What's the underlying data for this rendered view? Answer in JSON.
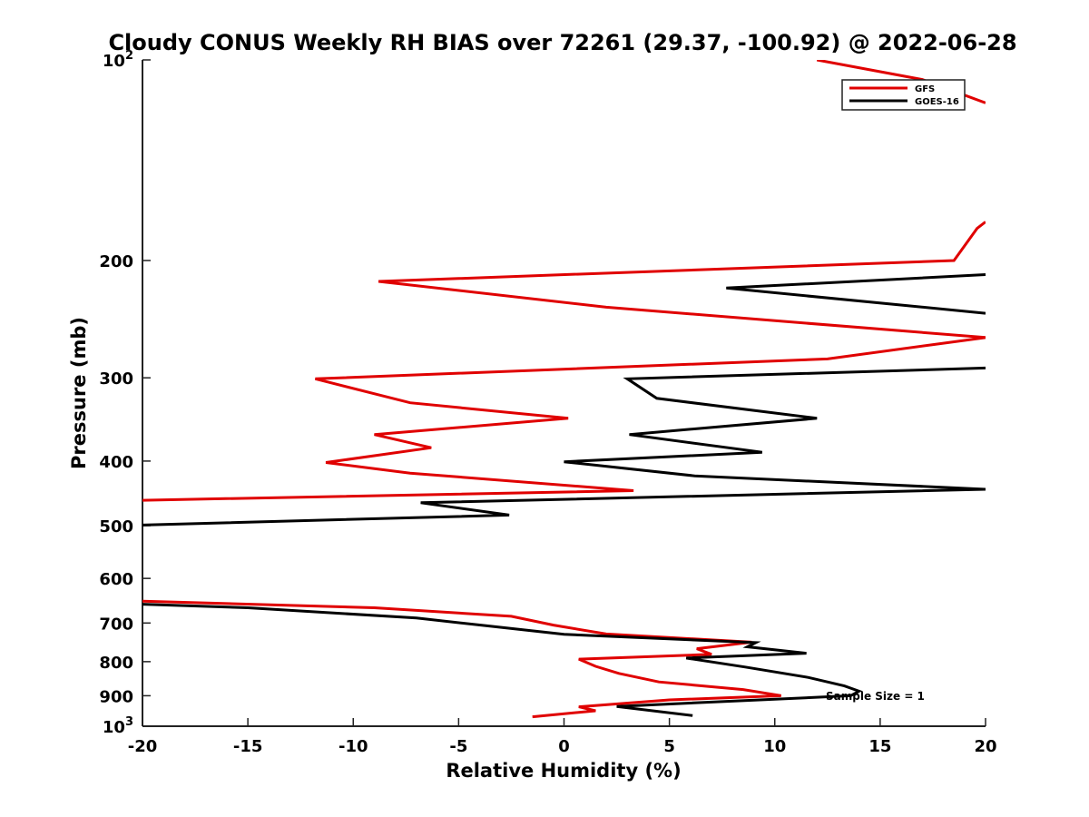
{
  "chart_data": {
    "type": "line",
    "title": "Cloudy CONUS Weekly RH BIAS over 72261 (29.37, -100.92) @ 2022-06-28",
    "xlabel": "Relative Humidity (%)",
    "ylabel": "Pressure (mb)",
    "xlim": [
      -20,
      20
    ],
    "ylim": [
      1000,
      100
    ],
    "yscale": "log",
    "grid": false,
    "legend_position": "top-right",
    "x_ticks": [
      "-20",
      "-15",
      "-10",
      "-5",
      "0",
      "5",
      "10",
      "15",
      "20"
    ],
    "x_tick_values": [
      -20,
      -15,
      -10,
      -5,
      0,
      5,
      10,
      15,
      20
    ],
    "y_ticks": [
      {
        "value": 100,
        "base": "10",
        "exp": "2"
      },
      {
        "value": 200,
        "label": "200"
      },
      {
        "value": 300,
        "label": "300"
      },
      {
        "value": 400,
        "label": "400"
      },
      {
        "value": 500,
        "label": "500"
      },
      {
        "value": 600,
        "label": "600"
      },
      {
        "value": 700,
        "label": "700"
      },
      {
        "value": 800,
        "label": "800"
      },
      {
        "value": 900,
        "label": "900"
      },
      {
        "value": 1000,
        "base": "10",
        "exp": "3"
      }
    ],
    "annotation": "Sample Size = 1",
    "series": [
      {
        "name": "GFS",
        "color": "#e00000",
        "segments": [
          [
            [
              12,
              100
            ],
            [
              17,
              107
            ],
            [
              20,
              116
            ]
          ],
          [
            [
              20,
              175
            ],
            [
              19.6,
              179
            ],
            [
              18.5,
              200
            ],
            [
              -8.8,
              215
            ],
            [
              2,
              235
            ],
            [
              20,
              261
            ],
            [
              12.5,
              281
            ],
            [
              -11.8,
              301
            ],
            [
              -7.3,
              327
            ],
            [
              0.2,
              345
            ],
            [
              -9,
              365
            ],
            [
              -6.3,
              382
            ],
            [
              -11.3,
              402
            ],
            [
              -7.3,
              417
            ],
            [
              3.3,
              443
            ],
            [
              -20,
              458
            ]
          ],
          [
            [
              -20,
              649
            ],
            [
              -9,
              664
            ],
            [
              -2.5,
              684
            ],
            [
              -0.5,
              705
            ],
            [
              2,
              727
            ],
            [
              8.9,
              748
            ],
            [
              6.3,
              765
            ],
            [
              7,
              780
            ],
            [
              0.7,
              793
            ],
            [
              1.5,
              813
            ],
            [
              2.6,
              833
            ],
            [
              4.5,
              858
            ],
            [
              8.5,
              881
            ],
            [
              10.3,
              900
            ],
            [
              5,
              913
            ],
            [
              0.7,
              935
            ],
            [
              1.5,
              948
            ],
            [
              -1.5,
              968
            ]
          ]
        ]
      },
      {
        "name": "GOES-16",
        "color": "#000000",
        "segments": [
          [
            [
              20,
              210
            ],
            [
              7.7,
              220
            ],
            [
              20,
              240
            ]
          ],
          [
            [
              20,
              290
            ],
            [
              3,
              301
            ],
            [
              4.4,
              322
            ],
            [
              12,
              345
            ],
            [
              3.1,
              365
            ],
            [
              9.4,
              388
            ],
            [
              0,
              401
            ],
            [
              6.2,
              421
            ],
            [
              20,
              441
            ],
            [
              -6.8,
              462
            ],
            [
              -2.6,
              482
            ],
            [
              -20,
              499
            ]
          ],
          [
            [
              -20,
              656
            ],
            [
              -15,
              664
            ],
            [
              -7,
              688
            ],
            [
              -3.8,
              706
            ],
            [
              0,
              728
            ],
            [
              9.1,
              749
            ],
            [
              8.7,
              760
            ],
            [
              11.5,
              777
            ],
            [
              5.8,
              790
            ],
            [
              8.6,
              815
            ],
            [
              11.6,
              845
            ],
            [
              13.3,
              870
            ],
            [
              14,
              886
            ],
            [
              13.6,
              900
            ],
            [
              2.5,
              934
            ],
            [
              6.1,
              964
            ]
          ]
        ]
      }
    ]
  }
}
